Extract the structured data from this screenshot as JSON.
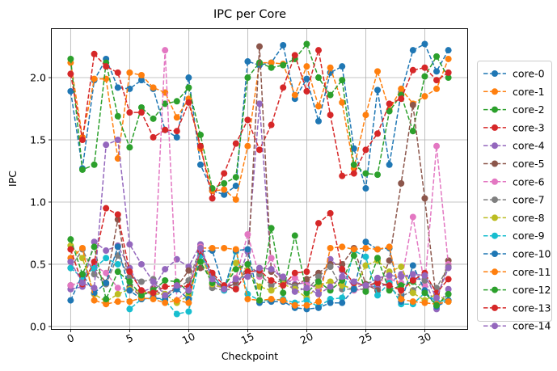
{
  "chart_data": {
    "type": "line",
    "title": "IPC per Core",
    "xlabel": "Checkpoint",
    "ylabel": "IPC",
    "xlim": [
      -1.6,
      33.6
    ],
    "ylim": [
      -0.02,
      2.39
    ],
    "x_ticks": [
      0,
      5,
      10,
      15,
      20,
      25,
      30
    ],
    "y_ticks": [
      0.0,
      0.5,
      1.0,
      1.5,
      2.0
    ],
    "x_tick_labels": [
      "0",
      "5",
      "10",
      "15",
      "20",
      "25",
      "30"
    ],
    "y_tick_labels": [
      "0.0",
      "0.5",
      "1.0",
      "1.5",
      "2.0"
    ],
    "grid": true,
    "legend_position": "right-outside",
    "line_style": "dashed",
    "marker": "circle",
    "x": [
      0,
      1,
      2,
      3,
      4,
      5,
      6,
      7,
      8,
      9,
      10,
      11,
      12,
      13,
      14,
      15,
      16,
      17,
      18,
      19,
      20,
      21,
      22,
      23,
      24,
      25,
      26,
      27,
      28,
      29,
      30,
      31,
      32
    ],
    "series": [
      {
        "name": "core-0",
        "color": "#1f77b4",
        "values": [
          1.89,
          1.27,
          1.98,
          2.15,
          1.92,
          1.91,
          1.98,
          1.91,
          1.58,
          1.52,
          2.0,
          1.3,
          1.09,
          1.06,
          1.13,
          2.13,
          2.1,
          2.12,
          2.26,
          1.83,
          1.99,
          1.65,
          2.04,
          2.09,
          1.43,
          1.11,
          1.9,
          1.3,
          1.88,
          2.22,
          2.27,
          2.05,
          2.22
        ]
      },
      {
        "name": "core-1",
        "color": "#ff7f0e",
        "values": [
          2.12,
          1.52,
          1.99,
          1.99,
          1.35,
          2.04,
          2.02,
          1.92,
          1.88,
          1.68,
          1.83,
          1.43,
          1.09,
          1.1,
          1.02,
          1.45,
          2.12,
          2.12,
          2.11,
          1.86,
          2.09,
          1.77,
          2.08,
          1.8,
          1.27,
          1.7,
          2.05,
          1.74,
          1.91,
          1.79,
          1.85,
          1.91,
          2.15
        ]
      },
      {
        "name": "core-2",
        "color": "#2ca02c",
        "values": [
          2.15,
          1.26,
          1.3,
          2.12,
          1.69,
          1.44,
          1.76,
          1.67,
          1.79,
          1.81,
          1.92,
          1.54,
          1.11,
          1.15,
          1.2,
          2.0,
          2.12,
          2.08,
          2.1,
          2.15,
          2.27,
          2.0,
          1.86,
          1.98,
          1.3,
          1.23,
          1.22,
          1.73,
          1.86,
          1.57,
          2.01,
          2.17,
          2.0
        ]
      },
      {
        "name": "core-3",
        "color": "#d62728",
        "values": [
          2.03,
          1.5,
          2.19,
          2.09,
          2.04,
          1.72,
          1.72,
          1.52,
          1.58,
          1.57,
          1.8,
          1.45,
          1.03,
          1.23,
          1.47,
          1.66,
          1.42,
          1.62,
          1.92,
          2.18,
          1.89,
          2.22,
          1.7,
          1.21,
          1.23,
          1.42,
          1.55,
          1.79,
          1.83,
          2.06,
          2.08,
          1.98,
          2.04
        ]
      },
      {
        "name": "core-4",
        "color": "#9467bd",
        "values": [
          0.3,
          0.32,
          0.68,
          0.61,
          0.65,
          0.47,
          0.28,
          0.31,
          0.46,
          0.54,
          0.48,
          0.66,
          0.37,
          0.32,
          0.34,
          0.6,
          1.79,
          0.46,
          0.39,
          0.34,
          0.35,
          0.3,
          0.54,
          0.45,
          0.31,
          0.34,
          0.31,
          0.35,
          0.42,
          0.38,
          0.38,
          0.14,
          0.3
        ]
      },
      {
        "name": "core-5",
        "color": "#8c564b",
        "values": [
          0.33,
          0.36,
          0.48,
          0.35,
          0.86,
          0.32,
          0.24,
          0.3,
          0.24,
          0.32,
          0.45,
          0.47,
          0.42,
          0.3,
          0.35,
          0.45,
          2.25,
          0.44,
          0.35,
          0.33,
          0.38,
          0.43,
          0.5,
          0.5,
          0.63,
          0.34,
          0.29,
          0.53,
          1.15,
          1.78,
          1.03,
          0.2,
          0.53
        ]
      },
      {
        "name": "core-6",
        "color": "#e377c2",
        "values": [
          0.33,
          0.36,
          0.49,
          0.43,
          0.31,
          0.29,
          0.29,
          0.25,
          2.22,
          0.21,
          0.3,
          0.64,
          0.33,
          0.31,
          0.39,
          0.74,
          0.4,
          0.55,
          0.33,
          0.39,
          0.33,
          0.32,
          0.31,
          0.34,
          0.29,
          0.3,
          0.36,
          0.38,
          0.35,
          0.88,
          0.33,
          1.45,
          0.5
        ]
      },
      {
        "name": "core-7",
        "color": "#7f7f7f",
        "values": [
          0.47,
          0.62,
          0.42,
          0.34,
          0.57,
          0.4,
          0.36,
          0.38,
          0.26,
          0.3,
          0.37,
          0.63,
          0.31,
          0.29,
          0.31,
          0.5,
          0.42,
          0.33,
          0.38,
          0.32,
          0.29,
          0.4,
          0.48,
          0.3,
          0.3,
          0.3,
          0.37,
          0.31,
          0.24,
          0.29,
          0.37,
          0.31,
          0.48
        ]
      },
      {
        "name": "core-8",
        "color": "#bcbd22",
        "values": [
          0.65,
          0.55,
          0.26,
          0.2,
          0.26,
          0.3,
          0.28,
          0.26,
          0.26,
          0.19,
          0.25,
          0.59,
          0.34,
          0.31,
          0.51,
          0.45,
          0.32,
          0.29,
          0.34,
          0.3,
          0.23,
          0.33,
          0.36,
          0.33,
          0.3,
          0.49,
          0.53,
          0.44,
          0.48,
          0.27,
          0.21,
          0.26,
          0.2
        ]
      },
      {
        "name": "core-9",
        "color": "#17becf",
        "values": [
          0.47,
          0.39,
          0.47,
          0.55,
          0.5,
          0.14,
          0.22,
          0.23,
          0.21,
          0.1,
          0.12,
          0.57,
          0.42,
          0.29,
          0.6,
          0.26,
          0.21,
          0.21,
          0.22,
          0.19,
          0.21,
          0.16,
          0.22,
          0.23,
          0.61,
          0.56,
          0.25,
          0.35,
          0.18,
          0.18,
          0.27,
          0.2,
          0.21
        ]
      },
      {
        "name": "core-10",
        "color": "#1f77b4",
        "values": [
          0.21,
          0.42,
          0.27,
          0.35,
          0.64,
          0.29,
          0.22,
          0.23,
          0.22,
          0.3,
          0.22,
          0.6,
          0.61,
          0.3,
          0.61,
          0.62,
          0.19,
          0.2,
          0.2,
          0.15,
          0.14,
          0.15,
          0.19,
          0.19,
          0.3,
          0.68,
          0.62,
          0.63,
          0.2,
          0.49,
          0.29,
          0.16,
          0.21
        ]
      },
      {
        "name": "core-11",
        "color": "#ff7f0e",
        "values": [
          0.55,
          0.63,
          0.21,
          0.18,
          0.2,
          0.2,
          0.23,
          0.22,
          0.19,
          0.21,
          0.19,
          0.63,
          0.63,
          0.63,
          0.62,
          0.22,
          0.21,
          0.22,
          0.21,
          0.17,
          0.17,
          0.2,
          0.63,
          0.64,
          0.62,
          0.63,
          0.62,
          0.64,
          0.22,
          0.2,
          0.19,
          0.18,
          0.2
        ]
      },
      {
        "name": "core-12",
        "color": "#2ca02c",
        "values": [
          0.7,
          0.42,
          0.64,
          0.22,
          0.44,
          0.36,
          0.25,
          0.29,
          0.37,
          0.36,
          0.28,
          0.52,
          0.35,
          0.32,
          0.46,
          0.5,
          0.21,
          0.79,
          0.27,
          0.73,
          0.27,
          0.36,
          0.29,
          0.37,
          0.57,
          0.28,
          0.55,
          0.29,
          0.33,
          0.36,
          0.27,
          0.17,
          0.26
        ]
      },
      {
        "name": "core-13",
        "color": "#d62728",
        "values": [
          0.62,
          0.34,
          0.52,
          0.95,
          0.9,
          0.44,
          0.29,
          0.27,
          0.32,
          0.33,
          0.32,
          0.61,
          0.43,
          0.33,
          0.3,
          0.44,
          0.45,
          0.37,
          0.33,
          0.43,
          0.44,
          0.83,
          0.91,
          0.46,
          0.35,
          0.33,
          0.35,
          0.33,
          0.29,
          0.37,
          0.43,
          0.27,
          0.38
        ]
      },
      {
        "name": "core-14",
        "color": "#9467bd",
        "values": [
          0.52,
          0.35,
          0.31,
          1.46,
          1.5,
          0.66,
          0.5,
          0.36,
          0.25,
          0.33,
          0.29,
          0.63,
          0.38,
          0.3,
          0.38,
          0.4,
          0.47,
          0.46,
          0.4,
          0.28,
          0.31,
          0.26,
          0.32,
          0.4,
          0.36,
          0.33,
          0.39,
          0.41,
          0.4,
          0.42,
          0.41,
          0.23,
          0.47
        ]
      }
    ]
  }
}
